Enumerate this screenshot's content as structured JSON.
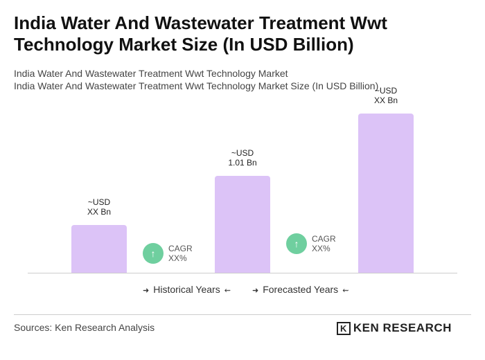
{
  "chart_data": {
    "type": "bar",
    "title": "India Water And Wastewater Treatment Wwt Technology Market Size (In USD Billion)",
    "subtitle": [
      "India Water And Wastewater Treatment Wwt Technology Market",
      "India Water And Wastewater Treatment Wwt Technology Market Size (In USD Billion)"
    ],
    "values": [
      0.5,
      1.01,
      1.66
    ],
    "value_labels": [
      "~USD\nXX Bn",
      "~USD\n1.01 Bn",
      "~USD\nXX Bn"
    ],
    "color": "#dcc3f7",
    "annotations": [
      "CAGR\nXX%",
      "CAGR\nXX%"
    ],
    "legend": [
      "Historical Years",
      "Forecasted Years"
    ],
    "source": "Sources: Ken Research Analysis",
    "logo": "KEN RESEARCH"
  }
}
